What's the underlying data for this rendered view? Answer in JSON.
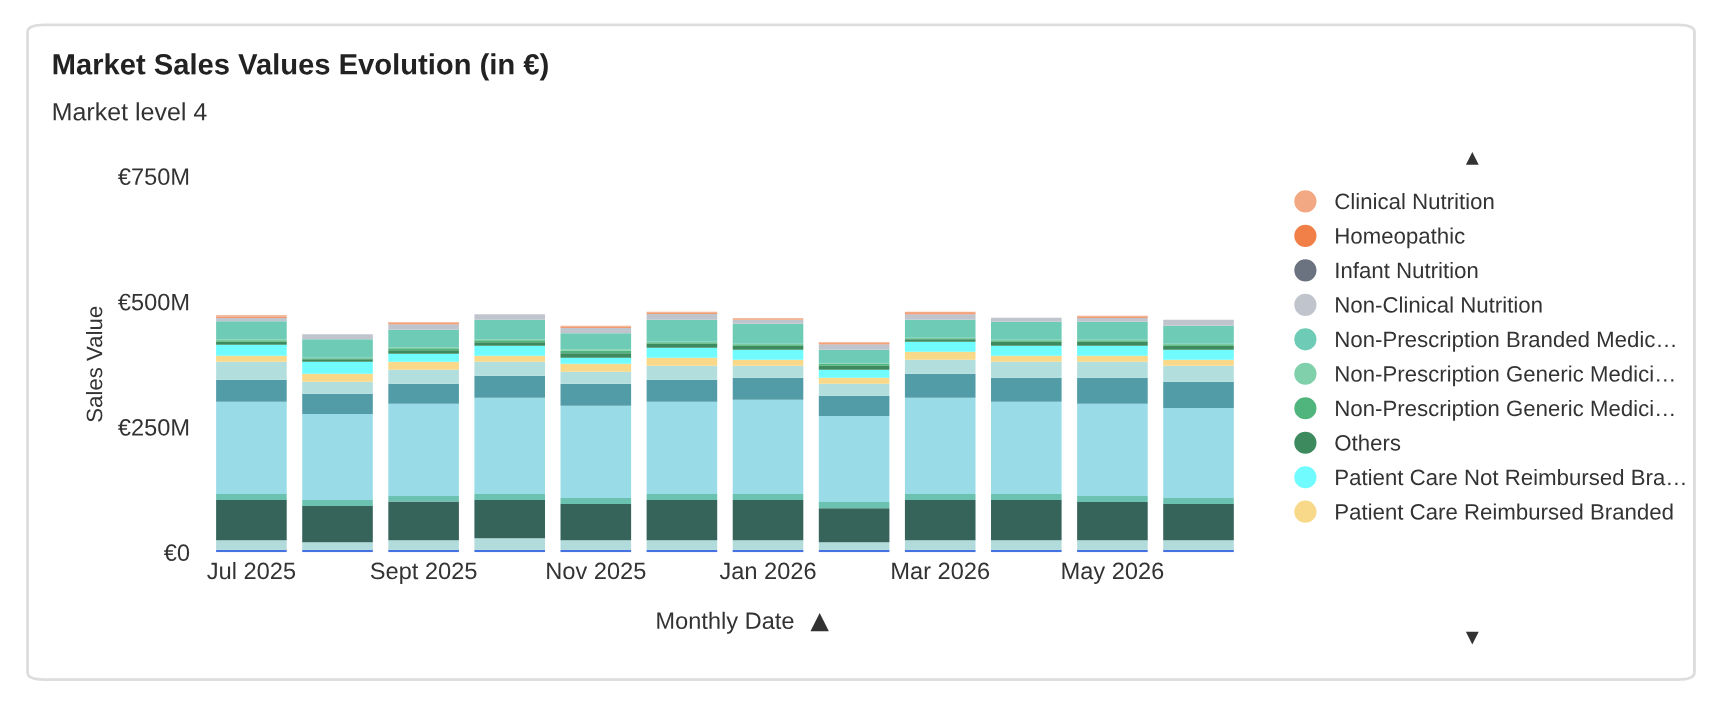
{
  "chart_data": {
    "type": "bar",
    "title": "Market Sales Values Evolution (in €)",
    "subtitle": "Market level 4",
    "xlabel": "Monthly Date",
    "ylabel": "Sales Value",
    "categories": [
      "Jul 2025",
      null,
      "Sept 2025",
      null,
      "Nov 2025",
      null,
      "Jan 2026",
      null,
      "Mar 2026",
      null,
      "May 2026",
      null
    ],
    "stacked": true,
    "legend": "right",
    "grid": false,
    "ylim": [
      0,
      750
    ],
    "yticks": [
      {
        "value": 0,
        "label": "€0"
      },
      {
        "value": 250,
        "label": "€250M"
      },
      {
        "value": 500,
        "label": "€500M"
      },
      {
        "value": 750,
        "label": "€750M"
      }
    ],
    "series": [
      {
        "color": "#4472e0",
        "values": [
          5,
          5,
          5,
          5,
          5,
          5,
          5,
          5,
          5,
          5,
          5,
          5
        ]
      },
      {
        "color": "#b2dcdc",
        "values": [
          19,
          15,
          19,
          23,
          19,
          19,
          19,
          15,
          19,
          19,
          19,
          19
        ]
      },
      {
        "color": "#36645a",
        "values": [
          80,
          72,
          77,
          76,
          72,
          80,
          80,
          68,
          80,
          80,
          76,
          72
        ]
      },
      {
        "color": "#6cc2b0",
        "values": [
          12,
          12,
          11,
          12,
          12,
          12,
          12,
          12,
          12,
          12,
          12,
          12
        ]
      },
      {
        "color": "#99dce8",
        "values": [
          184,
          172,
          184,
          192,
          184,
          184,
          188,
          172,
          192,
          184,
          184,
          180
        ]
      },
      {
        "color": "#529ca8",
        "values": [
          44,
          40,
          40,
          44,
          44,
          44,
          44,
          40,
          48,
          48,
          52,
          52
        ]
      },
      {
        "color": "#b3dede",
        "values": [
          36,
          24,
          28,
          28,
          24,
          28,
          24,
          24,
          28,
          32,
          32,
          32
        ]
      },
      {
        "name": "Patient Care Reimbursed Branded",
        "color": "#f8d98a",
        "values": [
          12,
          16,
          16,
          12,
          16,
          16,
          12,
          12,
          16,
          12,
          12,
          12
        ]
      },
      {
        "name": "Patient Care Not Reimbursed Bra…",
        "color": "#70fbff",
        "values": [
          22,
          24,
          16,
          20,
          12,
          20,
          20,
          16,
          20,
          20,
          20,
          20
        ]
      },
      {
        "name": "Others",
        "color": "#3d8a5e",
        "values": [
          6,
          5,
          7,
          7,
          9,
          8,
          8,
          8,
          5,
          8,
          8,
          8
        ]
      },
      {
        "name": "Non-Prescription Generic Medici…",
        "color": "#4fb57c",
        "values": [
          3,
          2,
          4,
          4,
          5,
          3,
          3,
          4,
          2,
          3,
          3,
          3
        ]
      },
      {
        "name": "Non-Prescription Generic Medici…",
        "color": "#7fd0ab",
        "values": [
          2,
          1,
          2,
          2,
          3,
          1,
          1,
          1,
          1,
          1,
          1,
          1
        ]
      },
      {
        "name": "Non-Prescription Branded Medic…",
        "color": "#6dcbb6",
        "values": [
          36,
          37,
          35,
          39,
          32,
          44,
          40,
          27,
          36,
          36,
          36,
          36
        ]
      },
      {
        "name": "Non-Clinical Nutrition",
        "color": "#c0c4cc",
        "values": [
          7,
          10,
          11,
          11,
          11,
          12,
          8,
          11,
          11,
          8,
          8,
          12
        ]
      },
      {
        "name": "Infant Nutrition",
        "color": "#6b7280",
        "values": [
          0,
          0,
          0,
          0,
          0,
          0,
          0,
          0,
          0,
          0,
          0,
          0
        ]
      },
      {
        "name": "Homeopathic",
        "color": "#f08048",
        "values": [
          2,
          0,
          2,
          0,
          2,
          2,
          1,
          2,
          2,
          0,
          2,
          0
        ]
      },
      {
        "name": "Clinical Nutrition",
        "color": "#f2a983",
        "values": [
          3,
          0,
          2,
          0,
          2,
          2,
          2,
          2,
          3,
          0,
          2,
          0
        ]
      }
    ]
  }
}
